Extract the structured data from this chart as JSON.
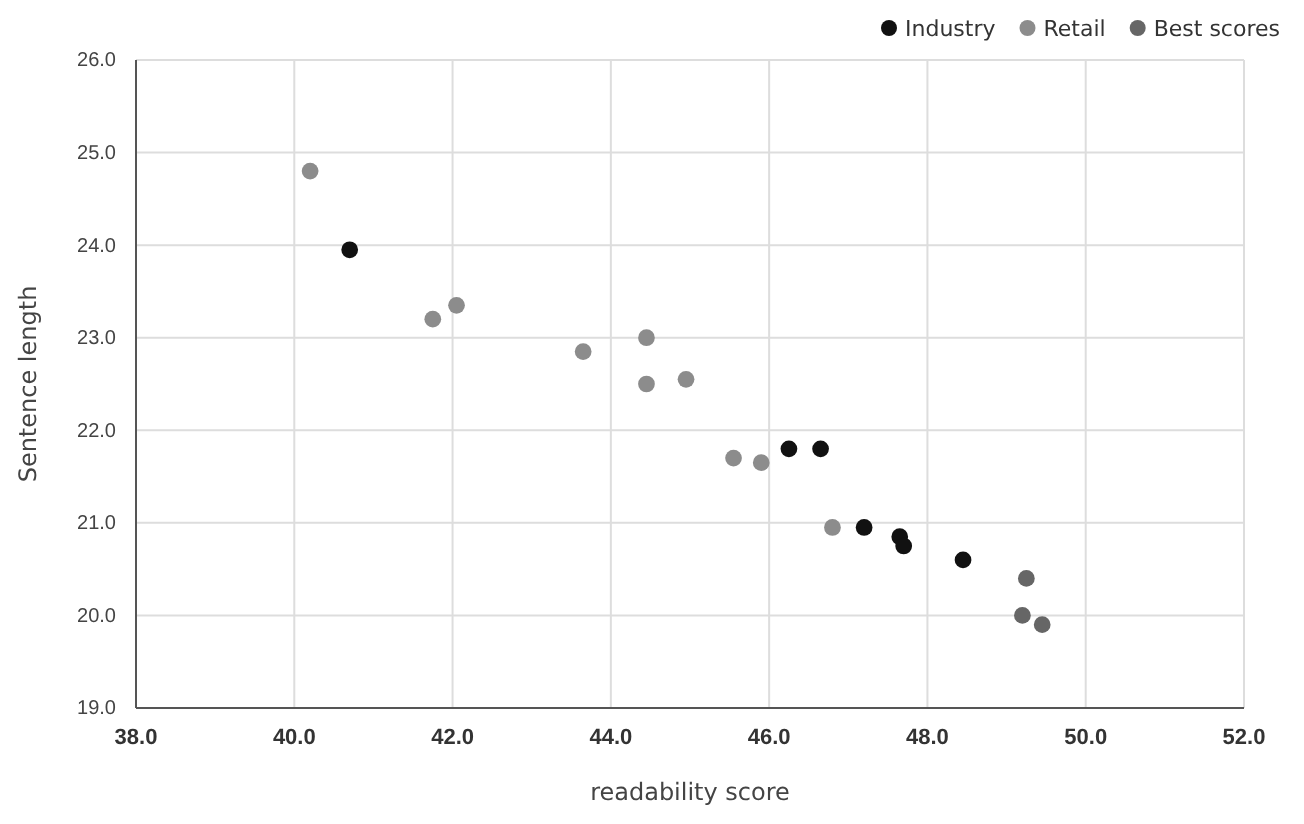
{
  "chart_data": {
    "type": "scatter",
    "xlabel": "readability score",
    "ylabel": "Sentence length",
    "xlim": [
      38,
      52
    ],
    "ylim": [
      19,
      26
    ],
    "xticks": [
      {
        "value": 38,
        "label": "38.0"
      },
      {
        "value": 40,
        "label": "40.0"
      },
      {
        "value": 42,
        "label": "42.0"
      },
      {
        "value": 44,
        "label": "44.0"
      },
      {
        "value": 46,
        "label": "46.0"
      },
      {
        "value": 48,
        "label": "48.0"
      },
      {
        "value": 50,
        "label": "50.0"
      },
      {
        "value": 52,
        "label": "52.0"
      }
    ],
    "yticks": [
      {
        "value": 19,
        "label": "19.0"
      },
      {
        "value": 20,
        "label": "20.0"
      },
      {
        "value": 21,
        "label": "21.0"
      },
      {
        "value": 22,
        "label": "22.0"
      },
      {
        "value": 23,
        "label": "23.0"
      },
      {
        "value": 24,
        "label": "24.0"
      },
      {
        "value": 25,
        "label": "25.0"
      },
      {
        "value": 26,
        "label": "26.0"
      }
    ],
    "grid": true,
    "legend": "top right",
    "marker": "circle",
    "series": [
      {
        "name": "Industry",
        "color": "#111111",
        "x": [
          40.7,
          46.25,
          46.65,
          47.2,
          47.65,
          47.7,
          48.45
        ],
        "values": [
          23.95,
          21.8,
          21.8,
          20.95,
          20.85,
          20.75,
          20.6
        ]
      },
      {
        "name": "Retail",
        "color": "#8c8c8c",
        "x": [
          40.2,
          41.75,
          42.05,
          43.65,
          44.45,
          44.45,
          44.95,
          45.55,
          45.9,
          46.8
        ],
        "values": [
          24.8,
          23.2,
          23.35,
          22.85,
          23.0,
          22.5,
          22.55,
          21.7,
          21.65,
          20.95
        ]
      },
      {
        "name": "Best scores",
        "color": "#666666",
        "x": [
          49.25,
          49.2,
          49.45
        ],
        "values": [
          20.4,
          20.0,
          19.9
        ]
      }
    ]
  }
}
